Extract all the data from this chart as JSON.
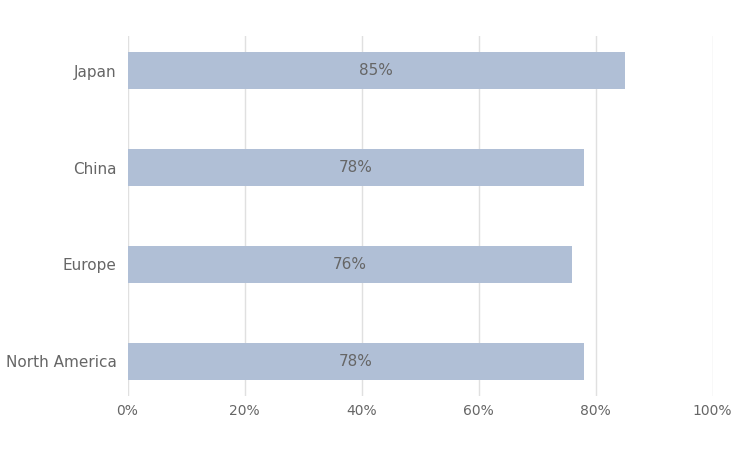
{
  "categories": [
    "North America",
    "Europe",
    "China",
    "Japan"
  ],
  "values": [
    0.78,
    0.76,
    0.78,
    0.85
  ],
  "labels": [
    "78%",
    "76%",
    "78%",
    "85%"
  ],
  "bar_color": "#b0bfd6",
  "background_color": "#ffffff",
  "text_color": "#666666",
  "grid_color": "#e0e0e0",
  "xlim": [
    0,
    1.0
  ],
  "xticks": [
    0,
    0.2,
    0.4,
    0.6,
    0.8,
    1.0
  ],
  "xtick_labels": [
    "0%",
    "20%",
    "40%",
    "60%",
    "80%",
    "100%"
  ],
  "bar_height": 0.38,
  "label_fontsize": 11,
  "tick_fontsize": 10,
  "ytick_fontsize": 11
}
